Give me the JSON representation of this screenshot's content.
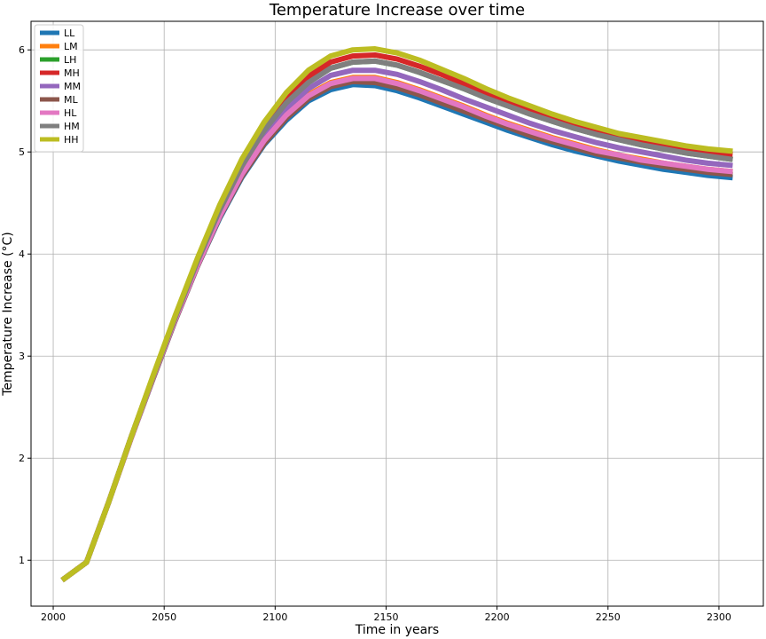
{
  "chart_data": {
    "type": "line",
    "title": "Temperature Increase over time",
    "xlabel": "Time in years",
    "ylabel": "Temperature Increase (°C)",
    "xlim": [
      1990,
      2320
    ],
    "ylim": [
      0.55,
      6.28
    ],
    "xticks": [
      2000,
      2050,
      2100,
      2150,
      2200,
      2250,
      2300
    ],
    "yticks": [
      1,
      2,
      3,
      4,
      5,
      6
    ],
    "grid": true,
    "legend_position": "top-left",
    "x": [
      2005,
      2015,
      2025,
      2035,
      2045,
      2055,
      2065,
      2075,
      2085,
      2095,
      2105,
      2115,
      2125,
      2135,
      2145,
      2155,
      2165,
      2175,
      2185,
      2195,
      2205,
      2215,
      2225,
      2235,
      2245,
      2255,
      2265,
      2275,
      2285,
      2295,
      2305
    ],
    "series": [
      {
        "name": "LL",
        "color": "#1f77b4",
        "values": [
          0.82,
          0.98,
          1.57,
          2.19,
          2.78,
          3.35,
          3.88,
          4.35,
          4.75,
          5.07,
          5.31,
          5.5,
          5.61,
          5.66,
          5.65,
          5.6,
          5.53,
          5.45,
          5.37,
          5.29,
          5.21,
          5.14,
          5.07,
          5.01,
          4.96,
          4.91,
          4.87,
          4.83,
          4.8,
          4.77,
          4.75
        ]
      },
      {
        "name": "LM",
        "color": "#ff7f0e",
        "values": [
          0.82,
          0.98,
          1.57,
          2.19,
          2.79,
          3.36,
          3.9,
          4.38,
          4.79,
          5.12,
          5.37,
          5.56,
          5.68,
          5.73,
          5.73,
          5.68,
          5.61,
          5.53,
          5.45,
          5.36,
          5.28,
          5.21,
          5.14,
          5.08,
          5.02,
          4.97,
          4.93,
          4.89,
          4.86,
          4.83,
          4.81
        ]
      },
      {
        "name": "LH",
        "color": "#2ca02c",
        "values": [
          0.82,
          0.98,
          1.57,
          2.2,
          2.8,
          3.38,
          3.93,
          4.43,
          4.86,
          5.21,
          5.48,
          5.68,
          5.82,
          5.88,
          5.89,
          5.85,
          5.78,
          5.7,
          5.62,
          5.53,
          5.45,
          5.37,
          5.3,
          5.23,
          5.17,
          5.12,
          5.07,
          5.03,
          4.99,
          4.96,
          4.93
        ]
      },
      {
        "name": "MH",
        "color": "#d62728",
        "values": [
          0.82,
          0.98,
          1.57,
          2.2,
          2.8,
          3.38,
          3.94,
          4.45,
          4.89,
          5.25,
          5.53,
          5.74,
          5.88,
          5.94,
          5.95,
          5.91,
          5.84,
          5.76,
          5.67,
          5.58,
          5.49,
          5.41,
          5.34,
          5.27,
          5.21,
          5.15,
          5.11,
          5.07,
          5.03,
          5.0,
          4.98
        ]
      },
      {
        "name": "MM",
        "color": "#9467bd",
        "values": [
          0.82,
          0.98,
          1.57,
          2.2,
          2.79,
          3.37,
          3.91,
          4.4,
          4.82,
          5.16,
          5.42,
          5.62,
          5.75,
          5.8,
          5.8,
          5.76,
          5.69,
          5.61,
          5.52,
          5.44,
          5.36,
          5.28,
          5.21,
          5.15,
          5.09,
          5.04,
          5.0,
          4.96,
          4.92,
          4.89,
          4.87
        ]
      },
      {
        "name": "ML",
        "color": "#8c564b",
        "values": [
          0.82,
          0.98,
          1.57,
          2.19,
          2.78,
          3.35,
          3.88,
          4.36,
          4.76,
          5.08,
          5.33,
          5.52,
          5.64,
          5.69,
          5.68,
          5.63,
          5.56,
          5.48,
          5.4,
          5.32,
          5.24,
          5.16,
          5.1,
          5.04,
          4.98,
          4.94,
          4.9,
          4.86,
          4.83,
          4.8,
          4.78
        ]
      },
      {
        "name": "HL",
        "color": "#e377c2",
        "values": [
          0.82,
          0.98,
          1.57,
          2.19,
          2.79,
          3.36,
          3.89,
          4.37,
          4.78,
          5.11,
          5.36,
          5.55,
          5.67,
          5.72,
          5.72,
          5.67,
          5.6,
          5.52,
          5.44,
          5.35,
          5.27,
          5.2,
          5.13,
          5.07,
          5.01,
          4.97,
          4.92,
          4.89,
          4.86,
          4.83,
          4.81
        ]
      },
      {
        "name": "HM",
        "color": "#7f7f7f",
        "values": [
          0.82,
          0.98,
          1.57,
          2.2,
          2.8,
          3.38,
          3.93,
          4.43,
          4.86,
          5.21,
          5.48,
          5.68,
          5.82,
          5.88,
          5.89,
          5.85,
          5.78,
          5.7,
          5.62,
          5.53,
          5.45,
          5.37,
          5.3,
          5.23,
          5.17,
          5.12,
          5.07,
          5.03,
          4.99,
          4.96,
          4.93
        ]
      },
      {
        "name": "HH",
        "color": "#bcbd22",
        "values": [
          0.82,
          0.98,
          1.57,
          2.2,
          2.81,
          3.4,
          3.96,
          4.48,
          4.93,
          5.29,
          5.58,
          5.8,
          5.94,
          6.0,
          6.01,
          5.97,
          5.9,
          5.81,
          5.72,
          5.62,
          5.53,
          5.45,
          5.37,
          5.3,
          5.24,
          5.18,
          5.14,
          5.1,
          5.06,
          5.03,
          5.01
        ]
      }
    ]
  }
}
